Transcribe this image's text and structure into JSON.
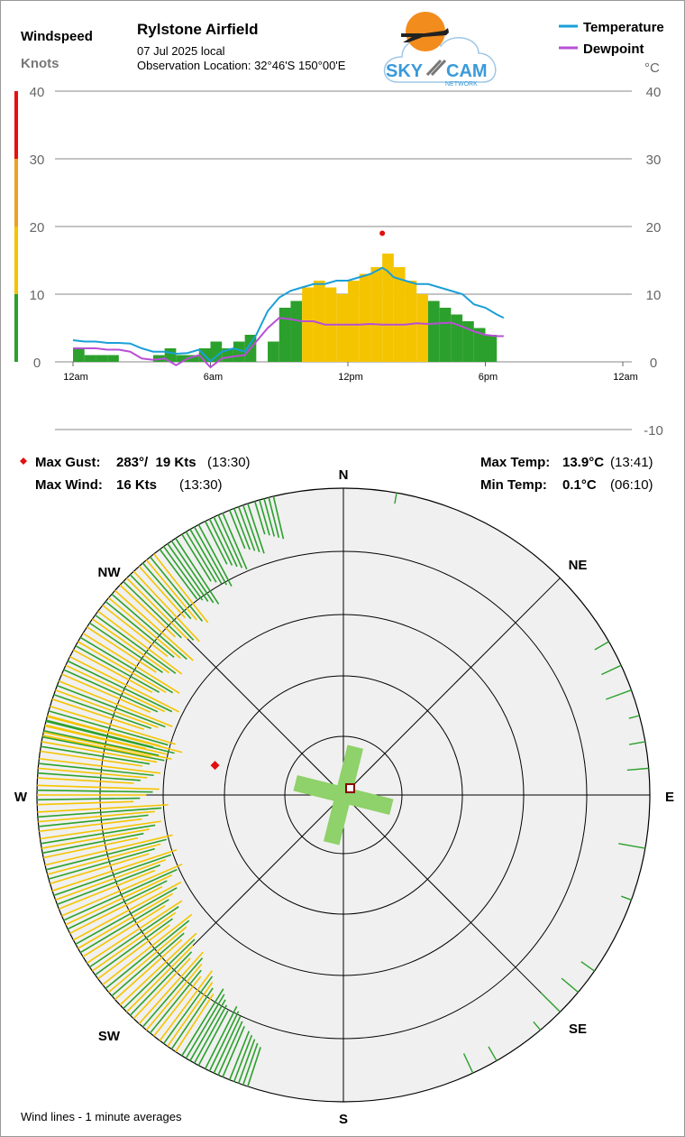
{
  "header": {
    "chart_label": "Windspeed",
    "units_label": "Knots",
    "site_name": "Rylstone Airfield",
    "date_line": "07 Jul 2025 local",
    "location_line": "Observation Location: 32°46'S 150°00'E",
    "logo_text_left": "SKY",
    "logo_text_right": "CAM",
    "logo_subtext": "NETWORK",
    "right_units": "°C"
  },
  "legend": [
    {
      "name": "Temperature",
      "color": "#1a9fd8"
    },
    {
      "name": "Dewpoint",
      "color": "#b84fd6"
    }
  ],
  "stats": {
    "max_gust_label": "Max Gust:",
    "max_gust_value": "283°/  19 Kts",
    "max_gust_time": "(13:30)",
    "max_wind_label": "Max Wind:",
    "max_wind_value": "16 Kts",
    "max_wind_time": "(13:30)",
    "max_temp_label": "Max Temp:",
    "max_temp_value": "13.9°C",
    "max_temp_time": "(13:41)",
    "min_temp_label": "Min Temp:",
    "min_temp_value": "0.1°C",
    "min_temp_time": "(06:10)"
  },
  "compass": {
    "N": "N",
    "NE": "NE",
    "E": "E",
    "SE": "SE",
    "S": "S",
    "SW": "SW",
    "W": "W",
    "NW": "NW"
  },
  "footer_note": "Wind lines - 1 minute averages",
  "colors": {
    "wind_low": "#2ca02c",
    "wind_mid": "#f5c400",
    "wind_high": "#f0a020",
    "wind_extreme": "#e81010",
    "gust_marker": "#e01010",
    "runway": "#8fd16a",
    "rose_bg": "#f0f0f0"
  },
  "chart_data": {
    "type": "line",
    "title": "Rylstone Airfield",
    "xlabel": "",
    "ylabel": "Knots",
    "x_ticks": [
      "12am",
      "6am",
      "12pm",
      "6pm",
      "12am"
    ],
    "left_ticks": [
      0,
      10,
      20,
      30,
      40
    ],
    "right_ticks": [
      -10,
      0,
      10,
      20,
      30,
      40
    ],
    "ylim": [
      -10,
      40
    ],
    "grid": true,
    "legend_position": "top-right",
    "max_gust": {
      "time_h": 13.5,
      "knots": 19
    },
    "series": [
      {
        "name": "Temperature",
        "axis": "°C",
        "hours": [
          0,
          0.5,
          1,
          1.5,
          2,
          2.5,
          3,
          3.5,
          4,
          4.5,
          5,
          5.5,
          6,
          6.5,
          7,
          7.5,
          8,
          8.5,
          9,
          9.5,
          10,
          10.5,
          11,
          11.5,
          12,
          12.5,
          13,
          13.5,
          13.7,
          14,
          14.5,
          15,
          15.5,
          16,
          16.5,
          17,
          17.5,
          18,
          18.5,
          18.8
        ],
        "values": [
          3.2,
          3,
          3,
          2.8,
          2.8,
          2.7,
          2,
          1.5,
          1.5,
          1.2,
          1.3,
          1.8,
          0.1,
          1.5,
          2,
          1.5,
          4,
          7.5,
          9.5,
          10.5,
          11,
          11.5,
          11.5,
          12,
          12,
          12.5,
          13,
          13.9,
          13.5,
          12.5,
          12,
          11.5,
          11.5,
          11,
          10.5,
          10,
          8.5,
          8,
          7,
          6.5
        ]
      },
      {
        "name": "Dewpoint",
        "axis": "°C",
        "hours": [
          0,
          0.5,
          1,
          1.5,
          2,
          2.5,
          3,
          3.5,
          4,
          4.5,
          5,
          5.5,
          6,
          6.5,
          7,
          7.5,
          8,
          8.5,
          9,
          9.5,
          10,
          10.5,
          11,
          11.5,
          12,
          12.5,
          13,
          13.5,
          14,
          14.5,
          15,
          15.5,
          16,
          16.5,
          17,
          17.5,
          18,
          18.5,
          18.8
        ],
        "values": [
          2,
          2,
          2,
          1.8,
          1.8,
          1.5,
          0.5,
          0.3,
          0.5,
          -0.5,
          0.5,
          1,
          -0.8,
          0.5,
          0.8,
          1,
          3,
          5,
          6.5,
          6.3,
          6,
          6,
          5.5,
          5.5,
          5.5,
          5.5,
          5.6,
          5.5,
          5.5,
          5.5,
          5.7,
          5.6,
          5.7,
          5.8,
          5.2,
          4.5,
          4,
          3.8,
          3.8
        ]
      },
      {
        "name": "Wind",
        "axis": "Knots",
        "hours": [
          0,
          0.5,
          1,
          1.5,
          2,
          2.5,
          3,
          3.5,
          4,
          4.5,
          5,
          5.5,
          6,
          6.5,
          7,
          7.5,
          8,
          8.5,
          9,
          9.5,
          10,
          10.5,
          11,
          11.5,
          12,
          12.5,
          13,
          13.5,
          14,
          14.5,
          15,
          15.5,
          16,
          16.5,
          17,
          17.5,
          18,
          18.5
        ],
        "values": [
          2,
          1,
          1,
          1,
          0,
          0,
          0,
          1,
          2,
          1,
          1,
          2,
          3,
          2,
          3,
          4,
          0,
          3,
          8,
          9,
          11,
          12,
          11,
          10,
          12,
          13,
          14,
          16,
          14,
          12,
          10,
          9,
          8,
          7,
          6,
          5,
          4,
          0
        ]
      }
    ],
    "wind_rose": {
      "type": "polar",
      "directions_deg": [
        200,
        205,
        210,
        215,
        220,
        225,
        230,
        235,
        240,
        245,
        250,
        255,
        260,
        265,
        270,
        275,
        280,
        283,
        285,
        290,
        295,
        300,
        305,
        310,
        315,
        320,
        325,
        330,
        335,
        340,
        345
      ],
      "speeds_kts": [
        6,
        8,
        9,
        10,
        11,
        12,
        13,
        13,
        14,
        15,
        15,
        15,
        14,
        15,
        14,
        14,
        15,
        16,
        15,
        14,
        14,
        13,
        12,
        12,
        11,
        10,
        9,
        8,
        7,
        6,
        5
      ],
      "calm_runway_deg": [
        14,
        104
      ]
    }
  }
}
